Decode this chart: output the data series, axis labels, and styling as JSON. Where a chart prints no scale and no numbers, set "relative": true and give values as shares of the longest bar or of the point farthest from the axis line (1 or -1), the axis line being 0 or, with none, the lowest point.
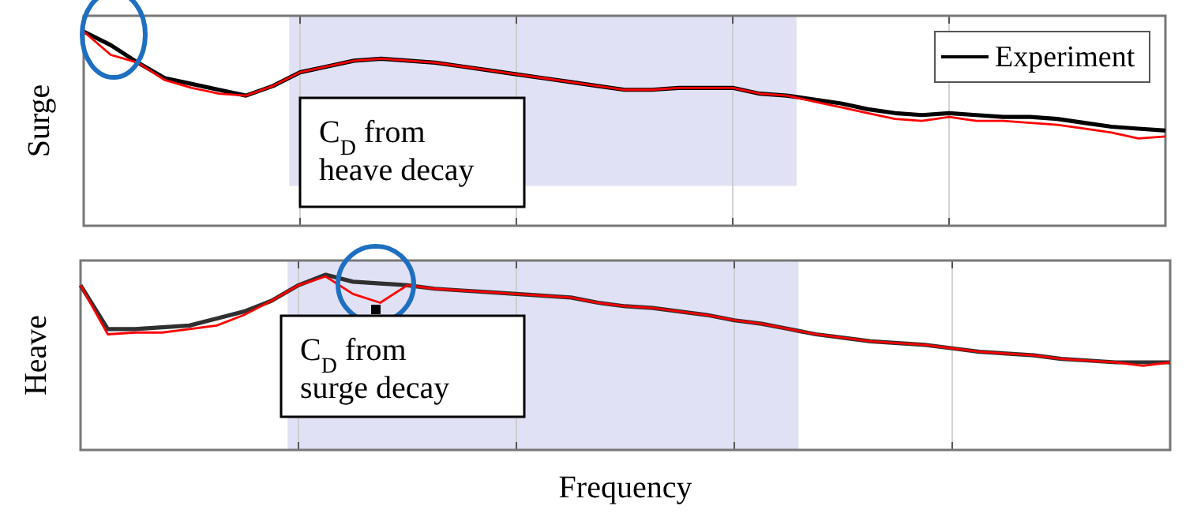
{
  "chart_data": [
    {
      "type": "line",
      "ylabel": "Surge",
      "relative": true,
      "grid": "x",
      "legend": "top right",
      "line_style": "solid",
      "marker": "none",
      "categories": [
        null,
        null,
        null,
        null,
        null,
        null,
        null,
        null,
        null,
        null,
        null,
        null,
        null,
        null,
        null,
        null,
        null,
        null,
        null,
        null,
        null,
        null,
        null,
        null,
        null,
        null,
        null,
        null,
        null,
        null,
        null,
        null,
        null,
        null,
        null,
        null,
        null,
        null,
        null,
        null,
        null
      ],
      "series": [
        {
          "name": "Experiment",
          "color": "#000000",
          "values": [
            1,
            0.93,
            0.84,
            0.76,
            0.73,
            0.7,
            0.67,
            0.72,
            0.79,
            0.82,
            0.85,
            0.86,
            0.85,
            0.84,
            0.82,
            0.8,
            0.78,
            0.76,
            0.74,
            0.72,
            0.7,
            0.7,
            0.71,
            0.71,
            0.71,
            0.68,
            0.67,
            0.65,
            0.63,
            0.6,
            0.58,
            0.57,
            0.58,
            0.57,
            0.56,
            0.56,
            0.55,
            0.53,
            0.51,
            0.5,
            0.49
          ]
        },
        {
          "color": "#ff0000",
          "values": [
            1,
            0.88,
            0.84,
            0.75,
            0.71,
            0.68,
            0.67,
            0.72,
            0.79,
            0.82,
            0.85,
            0.86,
            0.85,
            0.84,
            0.82,
            0.8,
            0.78,
            0.76,
            0.74,
            0.72,
            0.7,
            0.7,
            0.71,
            0.71,
            0.71,
            0.68,
            0.67,
            0.64,
            0.61,
            0.58,
            0.55,
            0.54,
            0.56,
            0.54,
            0.54,
            0.53,
            0.52,
            0.5,
            0.48,
            0.45,
            0.46
          ]
        }
      ],
      "annotations": [
        "C$_{D}$ from heave decay"
      ]
    },
    {
      "type": "line",
      "ylabel": "Heave",
      "xlabel": "Frequency",
      "relative": true,
      "grid": "x",
      "legend": false,
      "line_style": "solid",
      "marker": "none",
      "categories": [
        null,
        null,
        null,
        null,
        null,
        null,
        null,
        null,
        null,
        null,
        null,
        null,
        null,
        null,
        null,
        null,
        null,
        null,
        null,
        null,
        null,
        null,
        null,
        null,
        null,
        null,
        null,
        null,
        null,
        null,
        null,
        null,
        null,
        null,
        null,
        null,
        null,
        null,
        null,
        null,
        null
      ],
      "series": [
        {
          "color": "#303030",
          "values": [
            0.94,
            0.69,
            0.69,
            0.7,
            0.71,
            0.75,
            0.79,
            0.85,
            0.94,
            1,
            0.96,
            0.95,
            0.94,
            0.92,
            0.91,
            0.9,
            0.89,
            0.88,
            0.87,
            0.84,
            0.82,
            0.81,
            0.79,
            0.77,
            0.74,
            0.72,
            0.69,
            0.66,
            0.64,
            0.62,
            0.61,
            0.6,
            0.58,
            0.56,
            0.55,
            0.54,
            0.52,
            0.51,
            0.5,
            0.5,
            0.5
          ]
        },
        {
          "color": "#ff0000",
          "values": [
            0.94,
            0.66,
            0.67,
            0.67,
            0.69,
            0.71,
            0.77,
            0.85,
            0.94,
            0.99,
            0.89,
            0.84,
            0.94,
            0.92,
            0.91,
            0.9,
            0.89,
            0.88,
            0.87,
            0.84,
            0.82,
            0.81,
            0.79,
            0.77,
            0.74,
            0.72,
            0.69,
            0.66,
            0.64,
            0.62,
            0.61,
            0.6,
            0.58,
            0.56,
            0.55,
            0.54,
            0.52,
            0.51,
            0.5,
            0.48,
            0.5
          ]
        }
      ],
      "annotations": [
        "C$_{D}$ from surge decay"
      ]
    }
  ]
}
